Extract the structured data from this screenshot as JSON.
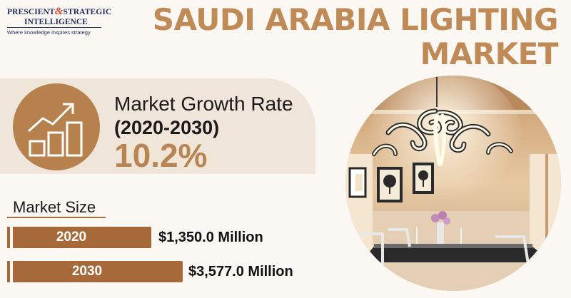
{
  "logo": {
    "line1": "PRESCIENT",
    "amp": "&",
    "line1b": "STRATEGIC",
    "line2": "INTELLIGENCE",
    "tagline": "Where knowledge inspires strategy"
  },
  "title": {
    "line1": "SAUDI ARABIA LIGHTING",
    "line2": "MARKET"
  },
  "growth": {
    "label": "Market Growth Rate",
    "period": "(2020-2030)",
    "value": "10.2%"
  },
  "market_size": {
    "label": "Market Size",
    "rows": [
      {
        "year": "2020",
        "value": "$1,350.0 Million"
      },
      {
        "year": "2030",
        "value": "$3,577.0 Million"
      }
    ]
  },
  "colors": {
    "accent": "#b88453",
    "bar": "#a8693a",
    "band": "#efe5d8",
    "logo_navy": "#1e2a5a",
    "logo_red": "#d8402c"
  },
  "icons": {
    "growth": "growth-chart-icon",
    "photo": "chandelier-photo"
  }
}
